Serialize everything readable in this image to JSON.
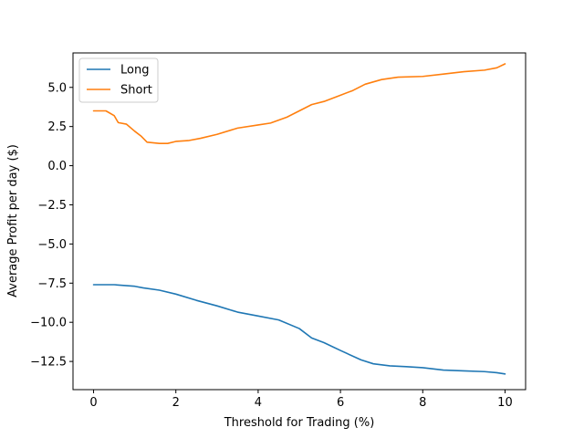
{
  "chart_data": {
    "type": "line",
    "title": "",
    "xlabel": "Threshold for Trading (%)",
    "ylabel": "Average Profit per day ($)",
    "xlim": [
      -0.5,
      10.5
    ],
    "ylim": [
      -14.3,
      7.2
    ],
    "xticks": [
      0,
      2,
      4,
      6,
      8,
      10
    ],
    "xtick_labels": [
      "0",
      "2",
      "4",
      "6",
      "8",
      "10"
    ],
    "yticks": [
      -12.5,
      -10.0,
      -7.5,
      -5.0,
      -2.5,
      0.0,
      2.5,
      5.0
    ],
    "ytick_labels": [
      "−12.5",
      "−10.0",
      "−7.5",
      "−5.0",
      "−2.5",
      "0.0",
      "2.5",
      "5.0"
    ],
    "grid": false,
    "legend_position": "top-left",
    "series": [
      {
        "name": "Long",
        "color": "#1f77b4",
        "x": [
          0,
          0.5,
          1.0,
          1.2,
          1.6,
          2.0,
          2.5,
          3.0,
          3.5,
          4.0,
          4.5,
          5.0,
          5.3,
          5.6,
          6.0,
          6.5,
          6.8,
          7.2,
          7.6,
          8.0,
          8.5,
          9.0,
          9.5,
          9.8,
          10.0
        ],
        "y": [
          -7.6,
          -7.6,
          -7.7,
          -7.8,
          -7.95,
          -8.2,
          -8.6,
          -8.95,
          -9.35,
          -9.6,
          -9.85,
          -10.4,
          -11.0,
          -11.3,
          -11.8,
          -12.4,
          -12.65,
          -12.78,
          -12.83,
          -12.9,
          -13.05,
          -13.1,
          -13.15,
          -13.22,
          -13.3
        ]
      },
      {
        "name": "Short",
        "color": "#ff7f0e",
        "x": [
          0,
          0.3,
          0.5,
          0.6,
          0.8,
          1.0,
          1.15,
          1.3,
          1.6,
          1.8,
          2.0,
          2.3,
          2.6,
          3.0,
          3.5,
          4.0,
          4.3,
          4.7,
          5.0,
          5.3,
          5.6,
          6.0,
          6.3,
          6.6,
          7.0,
          7.4,
          8.0,
          8.5,
          9.0,
          9.5,
          9.8,
          10.0
        ],
        "y": [
          3.5,
          3.5,
          3.2,
          2.75,
          2.65,
          2.2,
          1.9,
          1.5,
          1.42,
          1.42,
          1.55,
          1.6,
          1.75,
          2.0,
          2.4,
          2.6,
          2.72,
          3.1,
          3.5,
          3.9,
          4.1,
          4.5,
          4.8,
          5.2,
          5.5,
          5.65,
          5.7,
          5.85,
          6.0,
          6.1,
          6.25,
          6.5
        ]
      }
    ]
  }
}
